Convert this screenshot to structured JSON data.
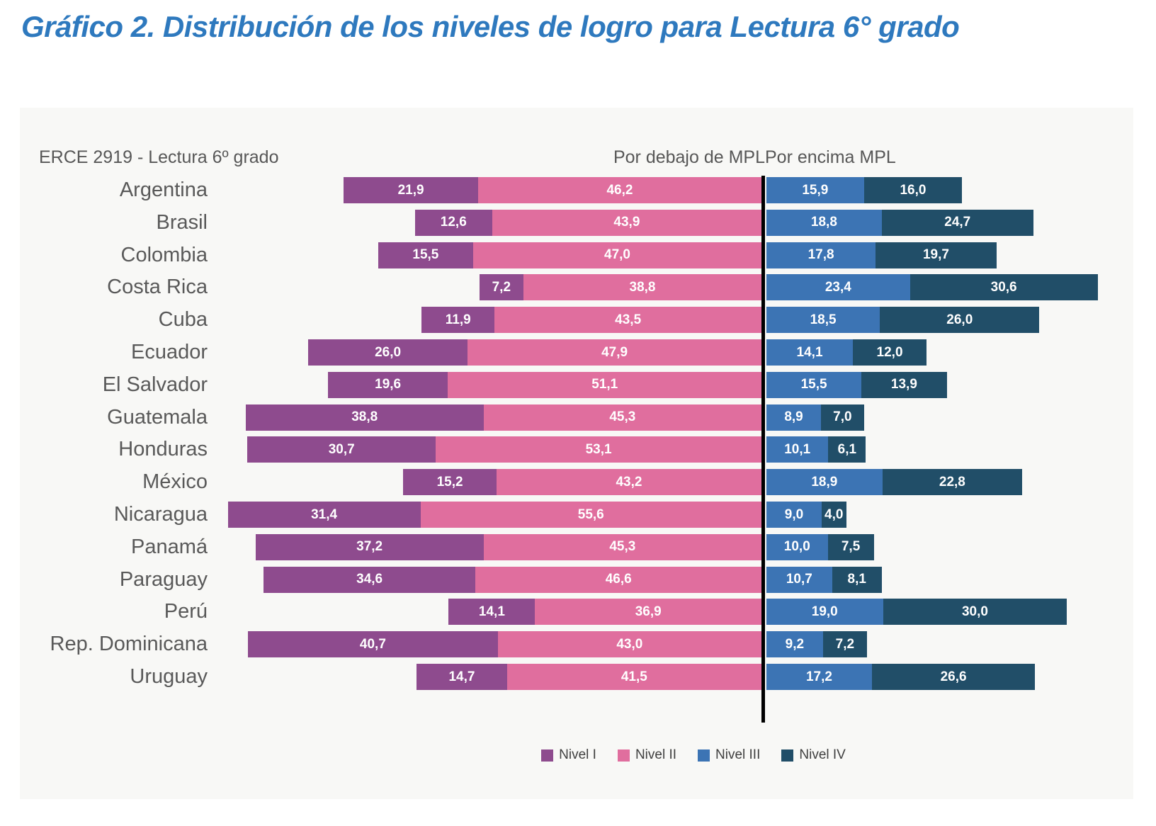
{
  "page": {
    "title": "Gráfico 2. Distribución de los niveles de logro para Lectura 6° grado"
  },
  "panel": {
    "source_label": "ERCE 2919  - Lectura 6º grado",
    "below_label": "Por debajo de MPL",
    "above_label": "Por encima MPL"
  },
  "colors": {
    "title": "#2e79be",
    "panel_background": "#f8f8f6",
    "divider_line": "#000000",
    "nivel_1": "#8e4b8e",
    "nivel_2": "#e06e9e",
    "nivel_3": "#3c74b4",
    "nivel_4": "#214e68",
    "axis_text": "#595959",
    "value_text": "#ffffff"
  },
  "chart_data": {
    "type": "bar",
    "orientation": "horizontal",
    "stacked": true,
    "diverging": true,
    "diverging_boundary": "MPL",
    "value_unit": "percent",
    "decimal_separator": ",",
    "legend_position": "bottom",
    "categories": [
      "Argentina",
      "Brasil",
      "Colombia",
      "Costa Rica",
      "Cuba",
      "Ecuador",
      "El Salvador",
      "Guatemala",
      "Honduras",
      "México",
      "Nicaragua",
      "Panamá",
      "Paraguay",
      "Perú",
      "Rep. Dominicana",
      "Uruguay"
    ],
    "series": [
      {
        "name": "Nivel I",
        "side": "below_mpl",
        "color": "#8e4b8e",
        "values": [
          21.9,
          12.6,
          15.5,
          7.2,
          11.9,
          26.0,
          19.6,
          38.8,
          30.7,
          15.2,
          31.4,
          37.2,
          34.6,
          14.1,
          40.7,
          14.7
        ]
      },
      {
        "name": "Nivel II",
        "side": "below_mpl",
        "color": "#e06e9e",
        "values": [
          46.2,
          43.9,
          47.0,
          38.8,
          43.5,
          47.9,
          51.1,
          45.3,
          53.1,
          43.2,
          55.6,
          45.3,
          46.6,
          36.9,
          43.0,
          41.5
        ]
      },
      {
        "name": "Nivel III",
        "side": "above_mpl",
        "color": "#3c74b4",
        "values": [
          15.9,
          18.8,
          17.8,
          23.4,
          18.5,
          14.1,
          15.5,
          8.9,
          10.1,
          18.9,
          9.0,
          10.0,
          10.7,
          19.0,
          9.2,
          17.2
        ]
      },
      {
        "name": "Nivel IV",
        "side": "above_mpl",
        "color": "#214e68",
        "values": [
          16.0,
          24.7,
          19.7,
          30.6,
          26.0,
          12.0,
          13.9,
          7.0,
          6.1,
          22.8,
          4.0,
          7.5,
          8.1,
          30.0,
          7.2,
          26.6
        ]
      }
    ]
  }
}
